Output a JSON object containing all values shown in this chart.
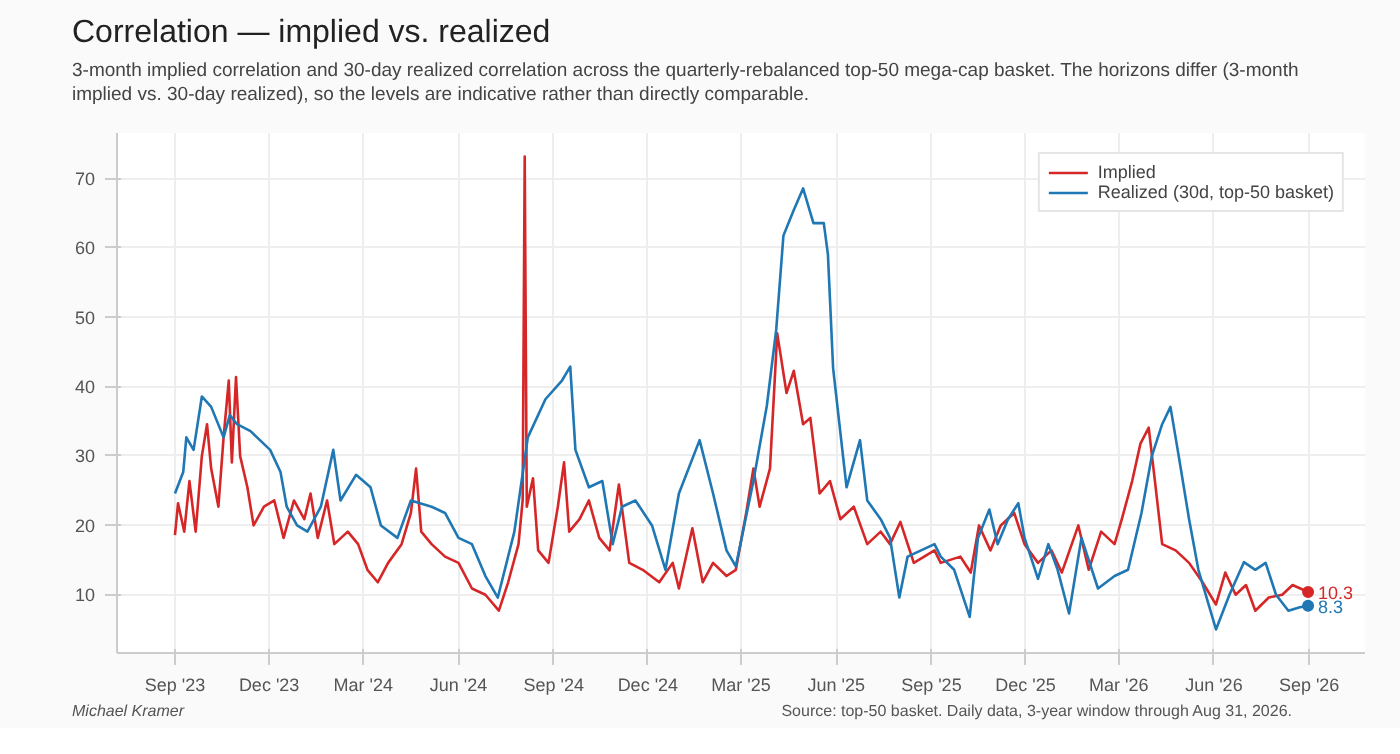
{
  "chart_data": {
    "type": "line",
    "title": "Correlation — implied vs. realized",
    "subtitle": "3-month implied correlation and 30-day realized correlation across the quarterly-rebalanced top-50 mega-cap basket. The horizons differ (3-month implied vs. 30-day realized), so the levels are indicative rather than directly comparable.",
    "series": [
      {
        "name": "Implied",
        "color": "#d62728",
        "x": [
          "2023-09-01",
          "2023-09-04",
          "2023-09-10",
          "2023-09-15",
          "2023-09-21",
          "2023-09-27",
          "2023-10-02",
          "2023-10-06",
          "2023-10-13",
          "2023-10-18",
          "2023-10-23",
          "2023-10-26",
          "2023-10-30",
          "2023-11-03",
          "2023-11-10",
          "2023-11-16",
          "2023-11-26",
          "2023-12-06",
          "2023-12-15",
          "2023-12-25",
          "2024-01-04",
          "2024-01-10",
          "2024-01-17",
          "2024-01-26",
          "2024-02-02",
          "2024-02-15",
          "2024-02-25",
          "2024-03-05",
          "2024-03-15",
          "2024-03-25",
          "2024-04-07",
          "2024-04-16",
          "2024-04-21",
          "2024-04-26",
          "2024-05-06",
          "2024-05-19",
          "2024-06-01",
          "2024-06-14",
          "2024-06-27",
          "2024-07-10",
          "2024-07-19",
          "2024-07-29",
          "2024-08-02",
          "2024-08-04",
          "2024-08-06",
          "2024-08-12",
          "2024-08-17",
          "2024-08-27",
          "2024-09-05",
          "2024-09-11",
          "2024-09-16",
          "2024-09-26",
          "2024-10-05",
          "2024-10-15",
          "2024-10-25",
          "2024-11-03",
          "2024-11-13",
          "2024-11-26",
          "2024-12-12",
          "2024-12-25",
          "2024-12-31",
          "2025-01-13",
          "2025-01-23",
          "2025-02-02",
          "2025-02-15",
          "2025-02-24",
          "2025-03-06",
          "2025-03-13",
          "2025-03-19",
          "2025-03-29",
          "2025-04-05",
          "2025-04-14",
          "2025-04-21",
          "2025-04-30",
          "2025-05-07",
          "2025-05-16",
          "2025-05-26",
          "2025-06-05",
          "2025-06-18",
          "2025-07-01",
          "2025-07-14",
          "2025-07-23",
          "2025-08-02",
          "2025-08-15",
          "2025-09-04",
          "2025-09-10",
          "2025-09-29",
          "2025-10-09",
          "2025-10-17",
          "2025-10-28",
          "2025-11-07",
          "2025-11-20",
          "2025-11-30",
          "2025-12-13",
          "2025-12-26",
          "2026-01-05",
          "2026-01-21",
          "2026-01-31",
          "2026-02-12",
          "2026-02-25",
          "2026-03-04",
          "2026-03-14",
          "2026-03-22",
          "2026-03-30",
          "2026-04-05",
          "2026-04-12",
          "2026-04-25",
          "2026-05-08",
          "2026-05-21",
          "2026-06-03",
          "2026-06-12",
          "2026-06-22",
          "2026-07-02",
          "2026-07-11",
          "2026-07-24",
          "2026-08-06",
          "2026-08-16",
          "2026-08-31"
        ],
        "values": [
          18.5,
          23.1,
          19,
          26.3,
          19,
          29.9,
          34.5,
          28.1,
          22.6,
          32.6,
          40.8,
          29,
          41.3,
          29.9,
          25.4,
          19.9,
          22.6,
          23.5,
          18.1,
          23.5,
          20.8,
          24.5,
          18.1,
          23.5,
          17.2,
          19,
          17.2,
          13.5,
          11.7,
          14.5,
          17.2,
          21.7,
          28.1,
          19,
          17.2,
          15.4,
          14.5,
          10.8,
          9.9,
          7.6,
          11.7,
          17.2,
          23.5,
          73.1,
          22.6,
          26.7,
          16.3,
          14.5,
          22.6,
          29,
          19,
          20.8,
          23.5,
          18.1,
          16.3,
          25.8,
          14.5,
          13.5,
          11.7,
          14.5,
          10.8,
          19.5,
          11.7,
          14.5,
          12.6,
          13.5,
          21.7,
          28.1,
          22.6,
          28.1,
          47.6,
          39,
          42.2,
          34.5,
          35.4,
          24.5,
          26.3,
          20.8,
          22.6,
          17.2,
          19,
          17.2,
          20.4,
          14.5,
          16.3,
          14.5,
          15.4,
          13.1,
          19.9,
          16.3,
          19.9,
          21.7,
          17.2,
          14.5,
          16.3,
          13.1,
          19.9,
          13.5,
          19,
          17.2,
          20.8,
          26.3,
          31.7,
          34,
          26.3,
          17.2,
          16.3,
          14.5,
          11.7,
          8.5,
          13.1,
          9.9,
          11.3,
          7.6,
          9.5,
          9.9,
          11.3,
          10.3
        ]
      },
      {
        "name": "Realized (30d, top-50 basket)",
        "color": "#1f77b4",
        "x": [
          "2023-09-01",
          "2023-09-09",
          "2023-09-12",
          "2023-09-19",
          "2023-09-27",
          "2023-10-06",
          "2023-10-18",
          "2023-10-24",
          "2023-10-31",
          "2023-11-13",
          "2023-12-02",
          "2023-12-12",
          "2023-12-18",
          "2023-12-28",
          "2024-01-07",
          "2024-01-20",
          "2024-02-01",
          "2024-02-08",
          "2024-02-23",
          "2024-03-08",
          "2024-03-18",
          "2024-04-03",
          "2024-04-16",
          "2024-05-06",
          "2024-05-19",
          "2024-06-01",
          "2024-06-14",
          "2024-06-27",
          "2024-07-09",
          "2024-07-25",
          "2024-08-07",
          "2024-08-24",
          "2024-09-09",
          "2024-09-17",
          "2024-09-22",
          "2024-10-05",
          "2024-10-18",
          "2024-10-28",
          "2024-11-06",
          "2024-11-19",
          "2024-12-05",
          "2024-12-18",
          "2024-12-31",
          "2025-01-20",
          "2025-02-02",
          "2025-02-15",
          "2025-02-24",
          "2025-03-13",
          "2025-03-26",
          "2025-04-04",
          "2025-04-11",
          "2025-04-21",
          "2025-04-30",
          "2025-05-10",
          "2025-05-20",
          "2025-05-24",
          "2025-05-29",
          "2025-06-11",
          "2025-06-24",
          "2025-07-01",
          "2025-07-14",
          "2025-07-23",
          "2025-08-01",
          "2025-08-09",
          "2025-09-04",
          "2025-09-10",
          "2025-09-23",
          "2025-10-08",
          "2025-10-16",
          "2025-10-27",
          "2025-11-04",
          "2025-11-14",
          "2025-11-24",
          "2025-11-30",
          "2025-12-13",
          "2025-12-23",
          "2026-01-01",
          "2026-01-12",
          "2026-01-24",
          "2026-02-09",
          "2026-02-25",
          "2026-03-10",
          "2026-03-23",
          "2026-04-02",
          "2026-04-12",
          "2026-04-20",
          "2026-04-28",
          "2026-05-08",
          "2026-05-17",
          "2026-06-03",
          "2026-06-16",
          "2026-06-30",
          "2026-07-11",
          "2026-07-21",
          "2026-07-31",
          "2026-08-12",
          "2026-08-23",
          "2026-08-31"
        ],
        "values": [
          24.5,
          27.6,
          32.6,
          30.8,
          38.5,
          37,
          32.6,
          35.8,
          34.5,
          33.5,
          30.8,
          27.6,
          22.6,
          19.9,
          19,
          22.6,
          30.8,
          23.5,
          27.2,
          25.4,
          19.9,
          18.1,
          23.5,
          22.6,
          21.7,
          18.1,
          17.2,
          12.6,
          9.5,
          19,
          32.6,
          38.1,
          40.8,
          42.8,
          30.8,
          25.4,
          26.3,
          17.2,
          22.6,
          23.5,
          19.9,
          13.5,
          24.5,
          32.2,
          24.5,
          16.3,
          14,
          26.3,
          37.2,
          48.1,
          61.7,
          65.4,
          68.5,
          63.5,
          63.5,
          59,
          42.6,
          25.4,
          32.2,
          23.5,
          20.8,
          18.1,
          9.5,
          15.4,
          17.2,
          15.4,
          13.5,
          6.7,
          18.1,
          22.2,
          17.2,
          20.8,
          23.1,
          18.1,
          12.2,
          17.2,
          13.5,
          7.2,
          18.1,
          10.8,
          12.6,
          13.5,
          21.7,
          29.9,
          34.5,
          37,
          29.9,
          20.8,
          13.5,
          4.9,
          9.9,
          14.6,
          13.5,
          14.5,
          9.9,
          7.6,
          8.1,
          8.3
        ]
      }
    ],
    "xlim": [
      "2023-07-07",
      "2026-10-25"
    ],
    "xticks": [
      {
        "value": "2023-09-01",
        "label": "Sep '23"
      },
      {
        "value": "2023-12-01",
        "label": "Dec '23"
      },
      {
        "value": "2024-03-01",
        "label": "Mar '24"
      },
      {
        "value": "2024-06-01",
        "label": "Jun '24"
      },
      {
        "value": "2024-09-01",
        "label": "Sep '24"
      },
      {
        "value": "2024-12-01",
        "label": "Dec '24"
      },
      {
        "value": "2025-03-01",
        "label": "Mar '25"
      },
      {
        "value": "2025-06-01",
        "label": "Jun '25"
      },
      {
        "value": "2025-09-01",
        "label": "Sep '25"
      },
      {
        "value": "2025-12-01",
        "label": "Dec '25"
      },
      {
        "value": "2026-03-01",
        "label": "Mar '26"
      },
      {
        "value": "2026-06-01",
        "label": "Jun '26"
      },
      {
        "value": "2026-09-01",
        "label": "Sep '26"
      }
    ],
    "ylim": [
      1.5,
      76.5
    ],
    "yticks": [
      10,
      20,
      30,
      40,
      50,
      60,
      70
    ],
    "grid": true,
    "legend": "top right",
    "line_style": "solid",
    "annotations": [
      {
        "text": "10.3",
        "x": "2026-08-31",
        "y": 10.3
      },
      {
        "text": "8.3",
        "x": "2026-08-31",
        "y": 8.3
      },
      "Michael Kramer",
      "Source: top-50 basket. Daily data, 3-year window through Aug 31, 2026."
    ]
  }
}
